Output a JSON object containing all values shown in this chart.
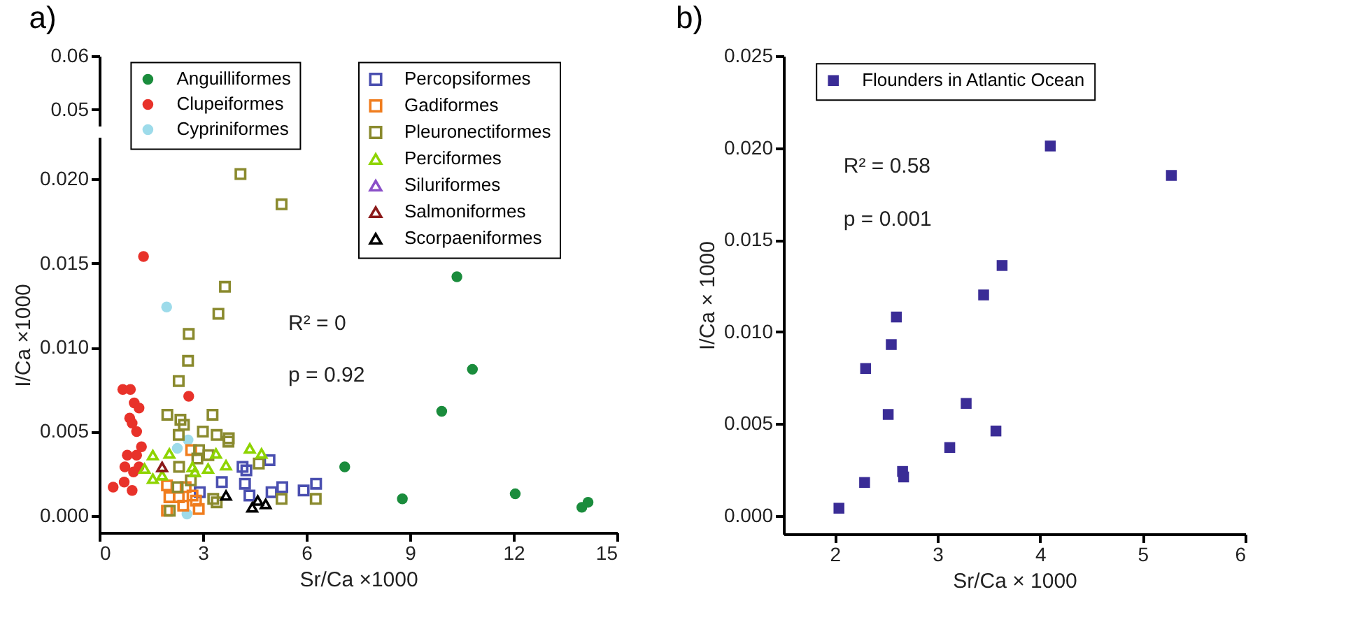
{
  "chart_data": [
    {
      "type": "scatter",
      "title": "a)",
      "tick_labels": "y",
      "xlim": [
        0,
        15
      ],
      "ylim": [
        0.047,
        0.06
      ],
      "yticks": [
        0.05,
        0.06
      ]
    },
    {
      "type": "scatter",
      "xlabel": "Sr/Ca ×1000",
      "ylabel": "I/Ca ×1000",
      "legend": "top",
      "annotations": [
        "R² = 0",
        "p = 0.92"
      ],
      "xlim": [
        0,
        15
      ],
      "xticks": [
        0,
        3,
        6,
        9,
        12,
        15
      ],
      "ylim": [
        -0.001,
        0.0225
      ],
      "yticks": [
        {
          "value": 0,
          "label": "0.000"
        },
        0.005,
        {
          "value": 0.01,
          "label": "0.010"
        },
        0.015,
        {
          "value": 0.02,
          "label": "0.020"
        }
      ],
      "series": [
        {
          "name": "Anguilliformes",
          "color": "#1a8c3c",
          "marker": "circle",
          "x": [
            10.36,
            10.81,
            9.92,
            8.78,
            12.05,
            13.98,
            14.16,
            7.11
          ],
          "values": [
            0.0142,
            0.0087,
            0.0062,
            0.001,
            0.0013,
            0.0005,
            0.0008,
            0.0029
          ]
        },
        {
          "name": "Clupeiformes",
          "color": "#e8322a",
          "marker": "circle",
          "x": [
            1.28,
            2.59,
            0.68,
            0.9,
            1.01,
            1.15,
            0.88,
            0.95,
            1.08,
            1.22,
            0.81,
            1.08,
            0.74,
            1.15,
            0.99,
            0.95,
            0.72,
            0.4
          ],
          "values": [
            0.0154,
            0.0071,
            0.0075,
            0.0075,
            0.0067,
            0.0064,
            0.0058,
            0.0055,
            0.005,
            0.0041,
            0.0036,
            0.0036,
            0.0029,
            0.0029,
            0.0026,
            0.0015,
            0.002,
            0.0017
          ]
        },
        {
          "name": "Cypriniformes",
          "color": "#9ddbea",
          "marker": "circle",
          "x": [
            1.95,
            2.57,
            2.26,
            2.54
          ],
          "values": [
            0.0124,
            0.0045,
            0.004,
            0.0001
          ]
        },
        {
          "name": "Percopsiformes",
          "color": "#4a4fb0",
          "marker": "square",
          "x": [
            4.15,
            4.26,
            4.93,
            3.55,
            4.22,
            4.35,
            5.3,
            4.99,
            5.92,
            6.28,
            2.91
          ],
          "values": [
            0.0029,
            0.0027,
            0.0033,
            0.002,
            0.0019,
            0.0012,
            0.0017,
            0.0014,
            0.0015,
            0.0019,
            0.0014
          ]
        },
        {
          "name": "Gadiformes",
          "color": "#f07d1e",
          "marker": "square",
          "x": [
            2.66,
            1.96,
            2.03,
            1.96,
            2.3,
            2.43,
            2.7,
            2.88,
            2.5,
            2.8
          ],
          "values": [
            0.0039,
            0.0018,
            0.0011,
            0.0003,
            0.0011,
            0.0006,
            0.0012,
            0.0004,
            0.0017,
            0.0009
          ]
        },
        {
          "name": "Pleuronectiformes",
          "color": "#8a8a2e",
          "marker": "square",
          "x": [
            4.09,
            5.28,
            3.64,
            3.45,
            2.59,
            2.57,
            2.3,
            1.97,
            2.35,
            2.45,
            2.3,
            3.28,
            3.0,
            3.4,
            3.75,
            3.74,
            2.31,
            2.65,
            4.62,
            2.27,
            3.3,
            3.4,
            5.28,
            6.27,
            2.04,
            2.84,
            3.16,
            2.89
          ],
          "values": [
            0.0203,
            0.0185,
            0.0136,
            0.012,
            0.0108,
            0.0092,
            0.008,
            0.006,
            0.0057,
            0.0054,
            0.0048,
            0.006,
            0.005,
            0.0048,
            0.0046,
            0.0044,
            0.0029,
            0.0021,
            0.0031,
            0.0017,
            0.001,
            0.0008,
            0.001,
            0.001,
            0.0003,
            0.0034,
            0.0036,
            0.0039
          ]
        },
        {
          "name": "Perciformes",
          "color": "#8ed400",
          "marker": "triangle",
          "x": [
            1.55,
            2.03,
            1.31,
            1.55,
            1.82,
            2.7,
            2.77,
            3.15,
            3.38,
            3.67,
            4.36,
            4.7
          ],
          "values": [
            0.0036,
            0.0037,
            0.0028,
            0.0022,
            0.0024,
            0.0029,
            0.0026,
            0.0028,
            0.0037,
            0.003,
            0.004,
            0.0037
          ]
        },
        {
          "name": "Siluriformes",
          "color": "#8a4fc8",
          "marker": "triangle"
        },
        {
          "name": "Salmoniformes",
          "color": "#8b1a1a",
          "marker": "triangle",
          "x": [
            1.82
          ],
          "values": [
            0.0029
          ]
        },
        {
          "name": "Scorpaeniformes",
          "color": "#000000",
          "marker": "triangle",
          "x": [
            3.67,
            4.43,
            4.59,
            4.82
          ],
          "values": [
            0.0012,
            0.0005,
            0.0009,
            0.0007
          ]
        }
      ]
    },
    {
      "type": "scatter",
      "title": "b)",
      "xlabel": "Sr/Ca × 1000",
      "ylabel": "I/Ca × 1000",
      "legend": "top left",
      "annotations": [
        "R² = 0.58",
        "p = 0.001"
      ],
      "xlim": [
        1.5,
        6
      ],
      "xticks": [
        2,
        3,
        4,
        5,
        6
      ],
      "ylim": [
        -0.001,
        0.025
      ],
      "yticks": [
        {
          "value": 0,
          "label": "0.000"
        },
        0.005,
        {
          "value": 0.01,
          "label": "0.010"
        },
        0.015,
        {
          "value": 0.02,
          "label": "0.020"
        },
        0.025
      ],
      "series": [
        {
          "name": "Flounders in Atlantic Ocean",
          "color": "#3a2c96",
          "marker": "square",
          "x": [
            2.04,
            2.29,
            2.3,
            2.52,
            2.55,
            2.6,
            2.66,
            2.67,
            3.12,
            3.28,
            3.45,
            3.57,
            3.63,
            4.1,
            5.28
          ],
          "values": [
            0.0004,
            0.0018,
            0.008,
            0.0055,
            0.0093,
            0.0108,
            0.0024,
            0.0021,
            0.0037,
            0.0061,
            0.012,
            0.0046,
            0.0136,
            0.0201,
            0.0185
          ]
        }
      ]
    }
  ]
}
